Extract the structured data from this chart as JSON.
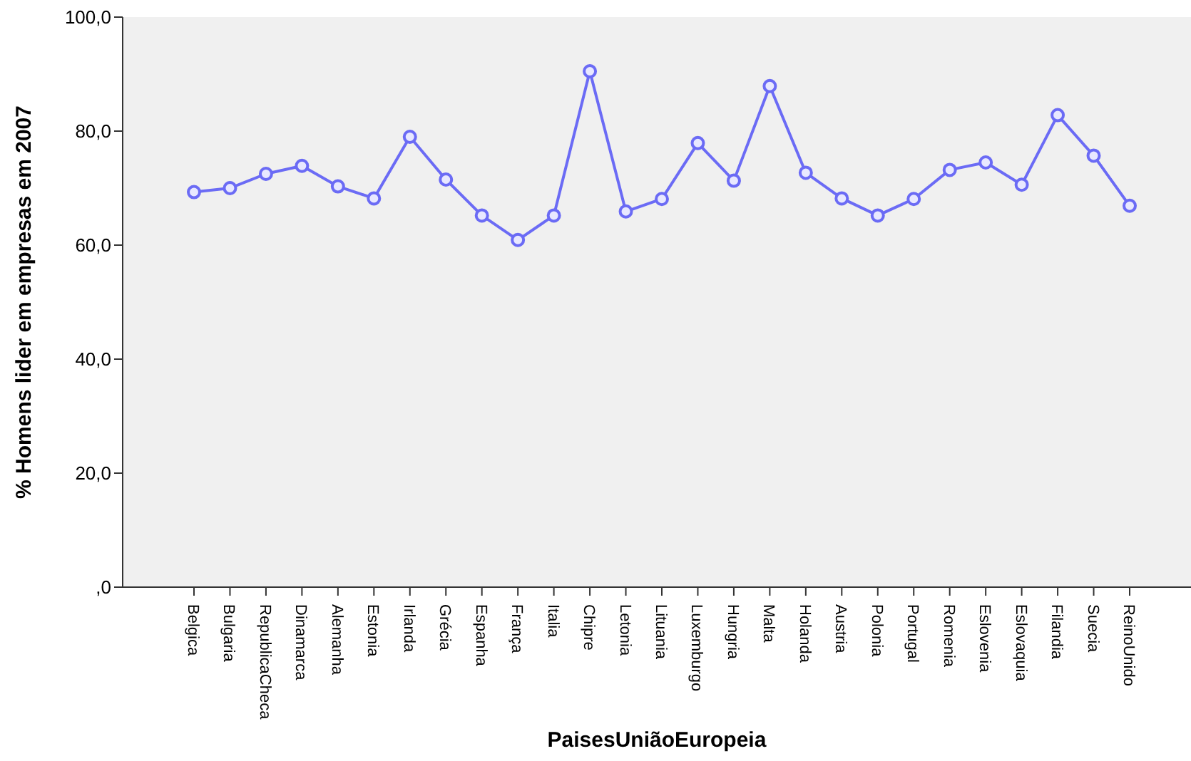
{
  "chart_data": {
    "type": "line",
    "xlabel": "PaisesUniãoEuropeia",
    "ylabel": "% Homens lider em empresas em 2007",
    "categories": [
      "Belgica",
      "Bulgaria",
      "RepublicaCheca",
      "Dinamarca",
      "Alemanha",
      "Estonia",
      "Irlanda",
      "Grécia",
      "Espanha",
      "França",
      "Italia",
      "Chipre",
      "Letonia",
      "Lituania",
      "Luxemburgo",
      "Hungria",
      "Malta",
      "Holanda",
      "Austria",
      "Polonia",
      "Portugal",
      "Romenia",
      "Eslovenia",
      "Eslovaquia",
      "Filandia",
      "Suecia",
      "ReinoUnido"
    ],
    "series": [
      {
        "color": "#6b6bf5",
        "values": [
          69.3,
          70.0,
          72.5,
          73.9,
          70.3,
          68.2,
          79.0,
          71.5,
          65.2,
          60.9,
          65.2,
          90.5,
          65.9,
          68.1,
          77.9,
          71.3,
          87.9,
          72.7,
          68.2,
          65.2,
          68.1,
          73.2,
          74.5,
          70.6,
          82.8,
          75.7,
          66.9
        ]
      }
    ],
    "ylim": [
      0,
      100
    ],
    "yticks": [
      {
        "value": 0,
        "label": ",0"
      },
      {
        "value": 20,
        "label": "20,0"
      },
      {
        "value": 40,
        "label": "40,0"
      },
      {
        "value": 60,
        "label": "60,0"
      },
      {
        "value": 80,
        "label": "80,0"
      },
      {
        "value": 100,
        "label": "100,0"
      }
    ],
    "marker": "circle",
    "line_style": "solid",
    "grid": false
  }
}
